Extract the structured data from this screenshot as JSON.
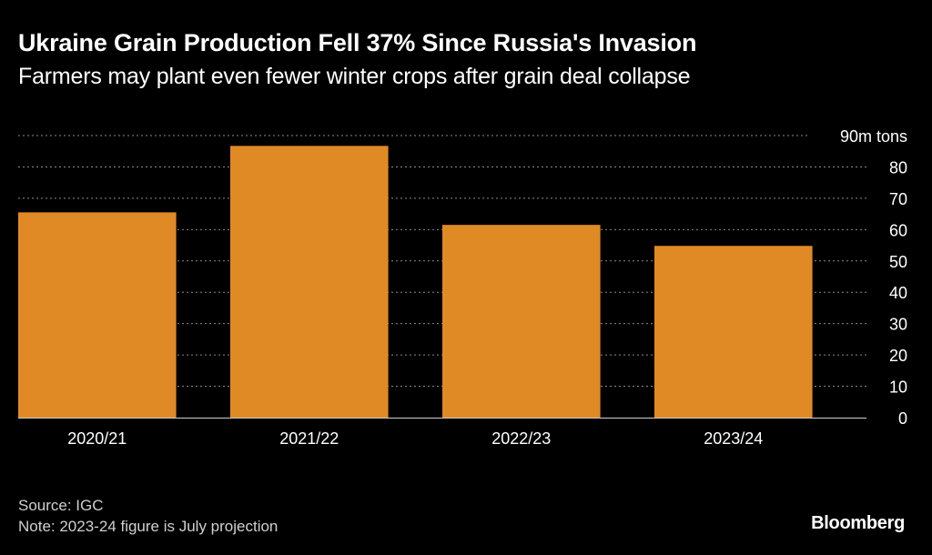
{
  "header": {
    "title": "Ukraine Grain Production Fell 37% Since Russia's Invasion",
    "subtitle": "Farmers may plant even fewer winter crops after grain deal collapse"
  },
  "footer": {
    "source": "Source: IGC",
    "note": "Note: 2023-24 figure is July projection",
    "brand": "Bloomberg"
  },
  "colors": {
    "background": "#000000",
    "bar": "#e08a25",
    "grid": "#8a8a8a",
    "text": "#ffffff",
    "muted": "#d0d0d0"
  },
  "chart_data": {
    "type": "bar",
    "title": "Ukraine Grain Production Fell 37% Since Russia's Invasion",
    "subtitle": "Farmers may plant even fewer winter crops after grain deal collapse",
    "categories": [
      "2020/21",
      "2021/22",
      "2022/23",
      "2023/24"
    ],
    "values": [
      65.5,
      86.7,
      61.5,
      54.8
    ],
    "ylim": [
      0,
      90
    ],
    "yticks": [
      0,
      10,
      20,
      30,
      40,
      50,
      60,
      70,
      80,
      90
    ],
    "ytick_labels": [
      "0",
      "10",
      "20",
      "30",
      "40",
      "50",
      "60",
      "70",
      "80",
      "90m tons"
    ],
    "y_axis_position": "right",
    "grid": true,
    "xlabel": "",
    "ylabel": ""
  }
}
